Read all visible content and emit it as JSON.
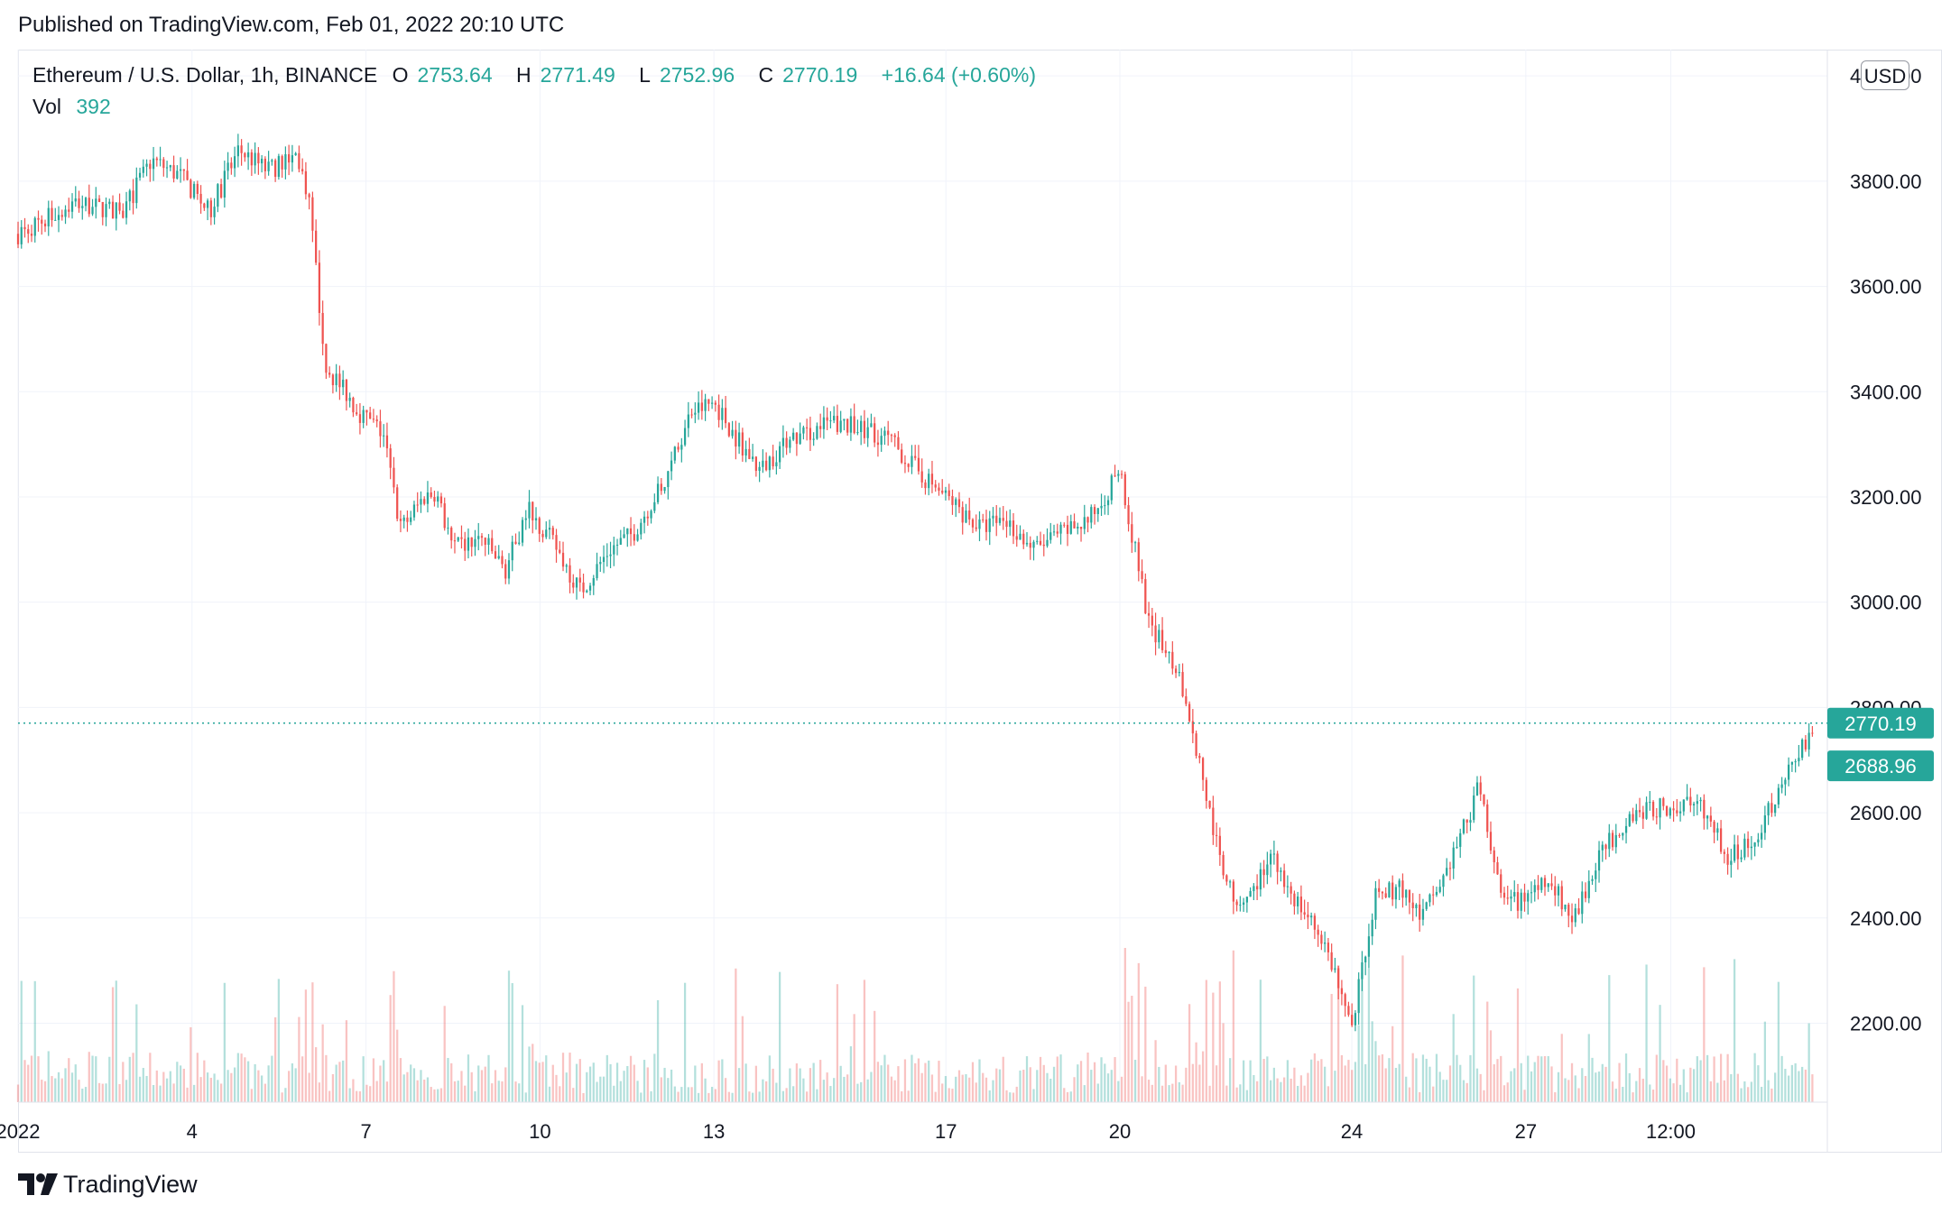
{
  "header": {
    "published": "Published on TradingView.com, Feb 01, 2022 20:10 UTC"
  },
  "legend": {
    "symbol": "Ethereum / U.S. Dollar, 1h, BINANCE",
    "o_label": "O",
    "o_value": "2753.64",
    "h_label": "H",
    "h_value": "2771.49",
    "l_label": "L",
    "l_value": "2752.96",
    "c_label": "C",
    "c_value": "2770.19",
    "change": "+16.64 (+0.60%)",
    "vol_label": "Vol",
    "vol_value": "392"
  },
  "currency": "USD",
  "branding": {
    "name": "TradingView"
  },
  "colors": {
    "up": "#26a69a",
    "down": "#ef5350",
    "grid": "#f0f3fa",
    "label_up": "#26a69a"
  },
  "chart_data": {
    "type": "candlestick",
    "symbol": "ETHUSD",
    "interval": "1h",
    "exchange": "BINANCE",
    "ylim": [
      2050,
      4050
    ],
    "y_ticks": [
      "2200.00",
      "2400.00",
      "2600.00",
      "2800.00",
      "3000.00",
      "3200.00",
      "3400.00",
      "3600.00",
      "3800.00",
      "4000.00"
    ],
    "x_ticks": [
      {
        "label": "2022",
        "day": 0
      },
      {
        "label": "4",
        "day": 3
      },
      {
        "label": "7",
        "day": 6
      },
      {
        "label": "10",
        "day": 9
      },
      {
        "label": "13",
        "day": 12
      },
      {
        "label": "17",
        "day": 16
      },
      {
        "label": "20",
        "day": 19
      },
      {
        "label": "24",
        "day": 23
      },
      {
        "label": "27",
        "day": 26
      },
      {
        "label": "12:00",
        "day": 28.5
      }
    ],
    "x_range_days": [
      0,
      31.2
    ],
    "price_labels": [
      {
        "value": "2770.19",
        "kind": "last",
        "dotted_line": true
      },
      {
        "value": "2688.96",
        "kind": "secondary"
      }
    ],
    "close_path_key_days": [
      0,
      1,
      1.8,
      2.3,
      2.8,
      3.3,
      3.8,
      4.3,
      4.8,
      5.0,
      5.3,
      5.5,
      5.9,
      6.3,
      6.6,
      7.0,
      7.2,
      7.5,
      8.0,
      8.4,
      8.8,
      9.3,
      9.7,
      10.2,
      10.6,
      11.2,
      11.6,
      12.0,
      12.4,
      12.8,
      13.2,
      13.6,
      14.0,
      14.6,
      15.0,
      15.6,
      16.0,
      16.6,
      17.0,
      17.5,
      18.0,
      18.5,
      19.0,
      19.5,
      20.0,
      20.3,
      20.7,
      21.0,
      21.3,
      21.6,
      22.0,
      22.5,
      23.0,
      23.4,
      23.8,
      24.2,
      24.6,
      25.2,
      25.6,
      26.0,
      26.4,
      26.8,
      27.3,
      27.8,
      28.4,
      29.0,
      29.5,
      30.0,
      30.5,
      31.0
    ],
    "close_path_key_values": [
      3700,
      3760,
      3740,
      3840,
      3810,
      3740,
      3860,
      3820,
      3850,
      3780,
      3450,
      3420,
      3360,
      3320,
      3140,
      3200,
      3210,
      3100,
      3120,
      3060,
      3180,
      3100,
      3020,
      3100,
      3130,
      3240,
      3360,
      3380,
      3310,
      3250,
      3300,
      3320,
      3340,
      3330,
      3310,
      3240,
      3200,
      3140,
      3160,
      3100,
      3130,
      3160,
      3250,
      2960,
      2870,
      2730,
      2520,
      2430,
      2450,
      2530,
      2440,
      2360,
      2200,
      2440,
      2460,
      2400,
      2480,
      2650,
      2420,
      2440,
      2480,
      2390,
      2520,
      2600,
      2610,
      2620,
      2510,
      2560,
      2680,
      2770
    ],
    "volume_note": "volume histogram bars in the lower pane, same up/down colors"
  }
}
